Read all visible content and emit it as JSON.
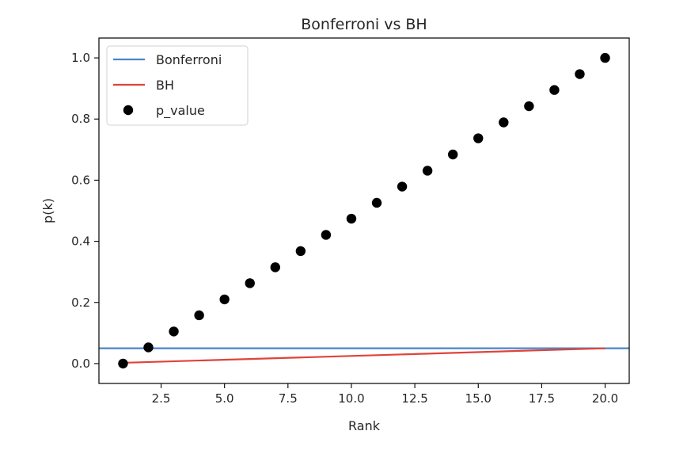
{
  "chart_data": {
    "type": "line",
    "title": "Bonferroni vs BH",
    "xlabel": "Rank",
    "ylabel": "p(k)",
    "xlim": [
      0.05,
      20.95
    ],
    "ylim": [
      -0.065,
      1.065
    ],
    "x_ticks": [
      2.5,
      5.0,
      7.5,
      10.0,
      12.5,
      15.0,
      17.5,
      20.0
    ],
    "x_tick_labels": [
      "2.5",
      "5.0",
      "7.5",
      "10.0",
      "12.5",
      "15.0",
      "17.5",
      "20.0"
    ],
    "y_ticks": [
      0.0,
      0.2,
      0.4,
      0.6,
      0.8,
      1.0
    ],
    "y_tick_labels": [
      "0.0",
      "0.2",
      "0.4",
      "0.6",
      "0.8",
      "1.0"
    ],
    "grid": false,
    "legend": {
      "position": "top-left",
      "entries": [
        "Bonferroni",
        "BH",
        "p_value"
      ]
    },
    "series": [
      {
        "name": "Bonferroni",
        "kind": "hline",
        "color": "#4a86c8",
        "y": 0.05
      },
      {
        "name": "BH",
        "kind": "line",
        "color": "#e0433a",
        "x": [
          1,
          20
        ],
        "y": [
          0.0025,
          0.05
        ]
      },
      {
        "name": "p_value",
        "kind": "scatter",
        "color": "#000000",
        "x": [
          1,
          2,
          3,
          4,
          5,
          6,
          7,
          8,
          9,
          10,
          11,
          12,
          13,
          14,
          15,
          16,
          17,
          18,
          19,
          20
        ],
        "y": [
          0.0,
          0.053,
          0.105,
          0.158,
          0.21,
          0.263,
          0.315,
          0.368,
          0.421,
          0.474,
          0.526,
          0.579,
          0.631,
          0.684,
          0.737,
          0.789,
          0.842,
          0.895,
          0.947,
          1.0
        ]
      }
    ]
  }
}
